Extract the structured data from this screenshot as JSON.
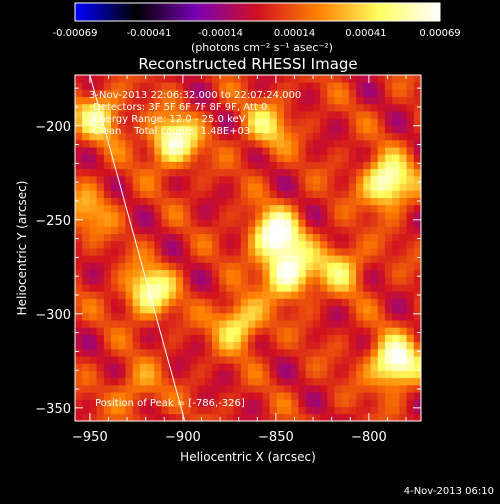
{
  "colorbar": {
    "min": -0.00069,
    "max": 0.00069,
    "tick_labels": [
      "-0.00069",
      "-0.00041",
      "-0.00014",
      "0.00014",
      "0.00041",
      "0.00069"
    ],
    "units_label": "(photons cm⁻² s⁻¹ asec⁻²)",
    "colormap": [
      "#0000ff",
      "#000000",
      "#7a00b4",
      "#d01020",
      "#ff8000",
      "#ffff60",
      "#ffffff"
    ]
  },
  "chart_data": {
    "type": "heatmap",
    "title": "Reconstructed RHESSI Image",
    "xlabel": "Heliocentric X (arcsec)",
    "ylabel": "Heliocentric Y (arcsec)",
    "xlim": [
      -958,
      -772
    ],
    "ylim": [
      -357,
      -173
    ],
    "x_ticks": [
      -950,
      -900,
      -850,
      -800
    ],
    "y_ticks": [
      -350,
      -300,
      -250,
      -200
    ],
    "x_tick_labels": [
      "−950",
      "−900",
      "−850",
      "−800"
    ],
    "y_tick_labels": [
      "−350",
      "−300",
      "−250",
      "−200"
    ],
    "annotations": [
      "3-Nov-2013 22:06:32.000 to 22:07:24.000",
      "Detectors: 3F 5F 6F 7F 8F 9F, Att 0",
      "Energy Range: 12.0 - 25.0 keV",
      "Clean    Total counts: 1.48E+03"
    ],
    "peak_label": "Position of Peak = [-786,-326]",
    "peak_position": [
      -786,
      -326
    ],
    "limb_line": [
      [
        -950,
        -173
      ],
      [
        -899,
        -357
      ]
    ],
    "sources": [
      {
        "x": -850,
        "y": -258,
        "value": 0.00069
      },
      {
        "x": -843,
        "y": -278,
        "value": 0.00062
      },
      {
        "x": -905,
        "y": -208,
        "value": 0.0006
      },
      {
        "x": -790,
        "y": -230,
        "value": 0.00066
      },
      {
        "x": -786,
        "y": -326,
        "value": 0.00069
      },
      {
        "x": -918,
        "y": -288,
        "value": 0.00055
      },
      {
        "x": -870,
        "y": -305,
        "value": 0.00045
      },
      {
        "x": -945,
        "y": -195,
        "value": 0.00042
      },
      {
        "x": -855,
        "y": -200,
        "value": 0.00035
      },
      {
        "x": -815,
        "y": -275,
        "value": 0.00035
      },
      {
        "x": -950,
        "y": -245,
        "value": 0.00025
      },
      {
        "x": -925,
        "y": -340,
        "value": 0.00022
      }
    ]
  },
  "footer": {
    "timestamp": "4-Nov-2013 06:10"
  }
}
